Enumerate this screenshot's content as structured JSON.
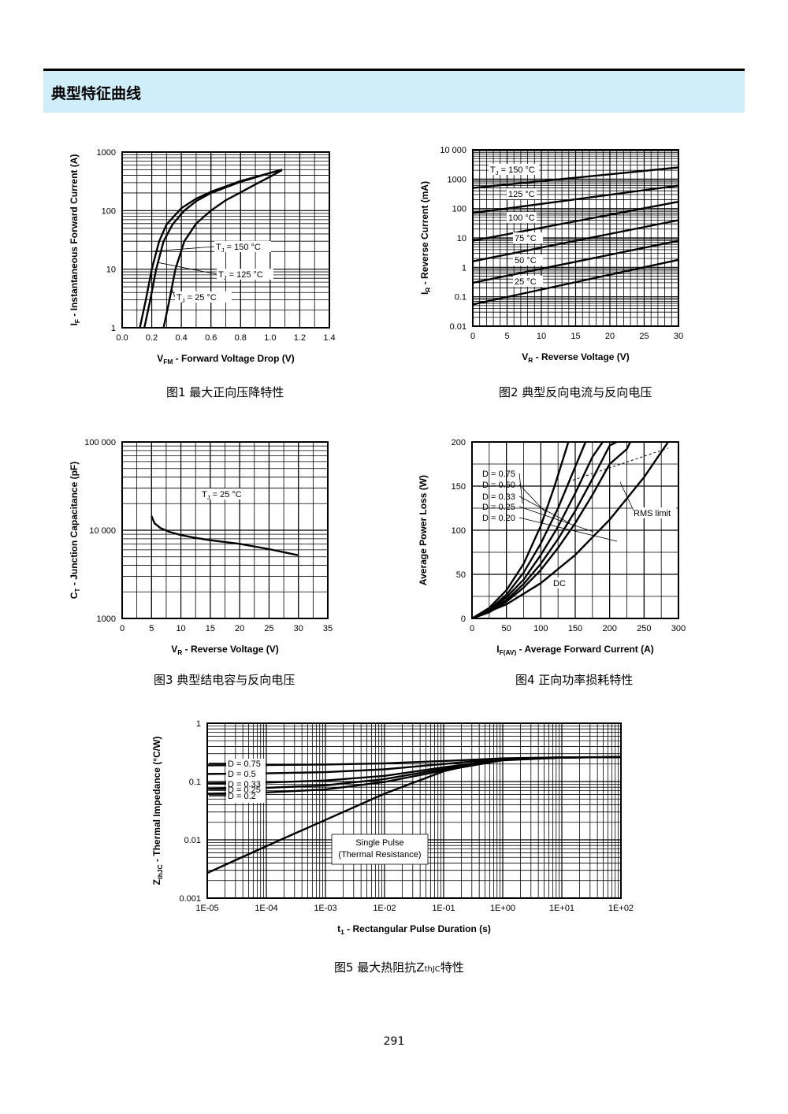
{
  "header": {
    "title": "典型特征曲线"
  },
  "page_number": "291",
  "captions": {
    "fig1": "图1  最大正向压降特性",
    "fig2": "图2  典型反向电流与反向电压",
    "fig3": "图3  典型结电容与反向电压",
    "fig4": "图4  正向功率损耗特性",
    "fig5_prefix": "图5  最大热阻抗Z",
    "fig5_sub": "thJC",
    "fig5_suffix": "特性"
  },
  "chart_data": [
    {
      "id": "fig1",
      "type": "line",
      "x_scale": "linear",
      "y_scale": "log",
      "xlim": [
        0,
        1.4
      ],
      "ylim": [
        1,
        1000
      ],
      "x_ticks": [
        "0.0",
        "0.2",
        "0.4",
        "0.6",
        "0.8",
        "1.0",
        "1.2",
        "1.4"
      ],
      "y_ticks": [
        "1",
        "10",
        "100",
        "1000"
      ],
      "xlabel": {
        "main": "V",
        "sub": "FM",
        "rest": " - Forward Voltage Drop (V)"
      },
      "ylabel": {
        "main": "I",
        "sub": "F",
        "rest": " - Instantaneous Forward Current (A)"
      },
      "series": [
        {
          "name": "T_J = 150 °C",
          "x": [
            0.12,
            0.16,
            0.2,
            0.25,
            0.3,
            0.4,
            0.5,
            0.6,
            0.8,
            1.0,
            1.08
          ],
          "y": [
            1,
            3,
            10,
            30,
            58,
            110,
            160,
            210,
            320,
            440,
            500
          ]
        },
        {
          "name": "T_J = 125 °C",
          "x": [
            0.15,
            0.19,
            0.23,
            0.28,
            0.34,
            0.42,
            0.5,
            0.6,
            0.8,
            1.0,
            1.08
          ],
          "y": [
            1,
            3,
            10,
            30,
            58,
            100,
            145,
            200,
            310,
            440,
            500
          ]
        },
        {
          "name": "T_J = 25 °C",
          "x": [
            0.28,
            0.32,
            0.36,
            0.42,
            0.5,
            0.6,
            0.7,
            0.8,
            0.9,
            1.0,
            1.08
          ],
          "y": [
            1,
            3,
            10,
            30,
            60,
            100,
            150,
            205,
            280,
            380,
            490
          ]
        }
      ],
      "annotations": [
        {
          "text": "T",
          "sub": "J",
          "rest": " = 150 °C",
          "pos": [
            0.62,
            3.3
          ]
        },
        {
          "text": "T",
          "sub": "J",
          "rest": " = 125 °C",
          "pos": [
            0.64,
            5.4
          ]
        },
        {
          "text": "T",
          "sub": "J",
          "rest": " = 25 °C",
          "pos": [
            0.38,
            2.5
          ]
        }
      ]
    },
    {
      "id": "fig2",
      "type": "line",
      "x_scale": "linear",
      "y_scale": "log",
      "xlim": [
        0,
        30
      ],
      "ylim": [
        0.01,
        10000
      ],
      "x_ticks": [
        "0",
        "5",
        "10",
        "15",
        "20",
        "25",
        "30"
      ],
      "y_ticks": [
        "0.01",
        "0.1",
        "1",
        "10",
        "100",
        "1000",
        "10 000"
      ],
      "xlabel": {
        "main": "V",
        "sub": "R",
        "rest": " - Reverse Voltage (V)"
      },
      "ylabel": {
        "main": "I",
        "sub": "R",
        "rest": " - Reverse Current (mA)"
      },
      "series": [
        {
          "name": "T_J = 150 °C",
          "x": [
            0,
            30
          ],
          "y": [
            500,
            2500
          ]
        },
        {
          "name": "125 °C",
          "x": [
            0,
            30
          ],
          "y": [
            70,
            600
          ]
        },
        {
          "name": "100 °C",
          "x": [
            0,
            30
          ],
          "y": [
            8,
            170
          ]
        },
        {
          "name": "75 °C",
          "x": [
            0,
            30
          ],
          "y": [
            1.6,
            40
          ]
        },
        {
          "name": "50 °C",
          "x": [
            0,
            30
          ],
          "y": [
            0.3,
            8
          ]
        },
        {
          "name": "25 °C",
          "x": [
            0,
            30
          ],
          "y": [
            0.055,
            1.8
          ]
        }
      ]
    },
    {
      "id": "fig3",
      "type": "line",
      "x_scale": "linear",
      "y_scale": "log",
      "xlim": [
        0,
        35
      ],
      "ylim": [
        1000,
        100000
      ],
      "x_ticks": [
        "0",
        "5",
        "10",
        "15",
        "20",
        "25",
        "30",
        "35"
      ],
      "y_ticks": [
        "1000",
        "10 000",
        "100 000"
      ],
      "xlabel": {
        "main": "V",
        "sub": "R",
        "rest": " - Reverse Voltage (V)"
      },
      "ylabel": {
        "main": "C",
        "sub": "T",
        "rest": " - Junction Capacitance (pF)"
      },
      "annotation": {
        "text": "T",
        "sub": "J",
        "rest": " = 25 °C"
      },
      "series": [
        {
          "x": [
            5,
            5.5,
            6.5,
            8,
            10,
            12,
            15,
            20,
            25,
            30
          ],
          "y": [
            14500,
            12000,
            10600,
            9600,
            8800,
            8300,
            7700,
            7000,
            6100,
            5200
          ]
        }
      ]
    },
    {
      "id": "fig4",
      "type": "line",
      "x_scale": "linear",
      "y_scale": "linear",
      "xlim": [
        0,
        300
      ],
      "ylim": [
        0,
        200
      ],
      "x_ticks": [
        "0",
        "50",
        "100",
        "150",
        "200",
        "250",
        "300"
      ],
      "y_ticks": [
        "0",
        "50",
        "100",
        "150",
        "200"
      ],
      "xlabel": {
        "main": "I",
        "sub": "F(AV)",
        "rest": " - Average Forward Current (A)"
      },
      "ylabel": {
        "main": "",
        "sub": "",
        "rest": "Average Power Loss (W)"
      },
      "series": [
        {
          "name": "D = 0.75",
          "x": [
            0,
            25,
            50,
            75,
            100,
            120,
            140
          ],
          "y": [
            0,
            12,
            32,
            62,
            105,
            150,
            200
          ]
        },
        {
          "name": "D = 0.50",
          "x": [
            0,
            25,
            50,
            75,
            100,
            125,
            150,
            165
          ],
          "y": [
            0,
            10,
            27,
            52,
            85,
            125,
            172,
            200
          ]
        },
        {
          "name": "D = 0.33",
          "x": [
            0,
            25,
            50,
            75,
            100,
            125,
            150,
            175,
            190
          ],
          "y": [
            0,
            9,
            24,
            44,
            72,
            104,
            142,
            183,
            200
          ]
        },
        {
          "name": "D = 0.25",
          "x": [
            0,
            25,
            50,
            75,
            100,
            125,
            150,
            175,
            200,
            210
          ],
          "y": [
            0,
            8,
            21,
            39,
            62,
            90,
            122,
            158,
            196,
            200
          ]
        },
        {
          "name": "D = 0.20",
          "x": [
            0,
            25,
            50,
            75,
            100,
            125,
            150,
            175,
            200,
            225,
            230
          ],
          "y": [
            0,
            7,
            19,
            35,
            55,
            80,
            108,
            140,
            175,
            192,
            200
          ]
        },
        {
          "name": "DC",
          "x": [
            0,
            50,
            100,
            150,
            200,
            250,
            285
          ],
          "y": [
            0,
            16,
            40,
            72,
            112,
            160,
            200
          ]
        }
      ],
      "rms_limit": {
        "label": "RMS limit",
        "x": [
          140,
          285
        ],
        "y": [
          155,
          193
        ]
      },
      "labels": [
        "D = 0.75",
        "D = 0.50",
        "D = 0.33",
        "D = 0.25",
        "D = 0.20",
        "DC",
        "RMS limit"
      ]
    },
    {
      "id": "fig5",
      "type": "line",
      "x_scale": "log",
      "y_scale": "log",
      "xlim": [
        1e-05,
        100
      ],
      "ylim": [
        0.001,
        1
      ],
      "x_ticks": [
        "1E-05",
        "1E-04",
        "1E-03",
        "1E-02",
        "1E-01",
        "1E+00",
        "1E+01",
        "1E+02"
      ],
      "y_ticks": [
        "0.001",
        "0.01",
        "0.1",
        "1"
      ],
      "xlabel": {
        "main": "t",
        "sub": "1",
        "rest": " - Rectangular Pulse Duration (s)"
      },
      "ylabel": {
        "main": "Z",
        "sub": "thJC",
        "rest": " - Thermal Impedance (°C/W)"
      },
      "series": [
        {
          "name": "D = 0.75",
          "x": [
            1e-05,
            0.0001,
            0.001,
            0.01,
            0.1,
            1,
            10,
            100
          ],
          "y": [
            0.19,
            0.192,
            0.196,
            0.205,
            0.225,
            0.25,
            0.26,
            0.262
          ]
        },
        {
          "name": "D = 0.5",
          "x": [
            1e-05,
            0.0001,
            0.001,
            0.01,
            0.1,
            1,
            10,
            100
          ],
          "y": [
            0.135,
            0.138,
            0.145,
            0.162,
            0.2,
            0.245,
            0.26,
            0.262
          ]
        },
        {
          "name": "D = 0.33",
          "x": [
            1e-05,
            0.0001,
            0.001,
            0.01,
            0.1,
            1,
            10,
            100
          ],
          "y": [
            0.093,
            0.096,
            0.104,
            0.125,
            0.175,
            0.238,
            0.258,
            0.262
          ]
        },
        {
          "name": "D = 0.25",
          "x": [
            1e-05,
            0.0001,
            0.001,
            0.01,
            0.1,
            1,
            10,
            100
          ],
          "y": [
            0.075,
            0.078,
            0.086,
            0.11,
            0.165,
            0.235,
            0.258,
            0.262
          ]
        },
        {
          "name": "D = 0.2",
          "x": [
            1e-05,
            0.0001,
            0.001,
            0.01,
            0.1,
            1,
            10,
            100
          ],
          "y": [
            0.062,
            0.065,
            0.073,
            0.098,
            0.155,
            0.232,
            0.257,
            0.262
          ]
        },
        {
          "name": "Single Pulse",
          "x": [
            1e-05,
            0.0001,
            0.001,
            0.01,
            0.1,
            0.5,
            1,
            10,
            100
          ],
          "y": [
            0.0027,
            0.0078,
            0.022,
            0.062,
            0.15,
            0.22,
            0.24,
            0.258,
            0.262
          ]
        }
      ],
      "annotation": {
        "line1": "Single Pulse",
        "line2": "(Thermal Resistance)"
      }
    }
  ]
}
